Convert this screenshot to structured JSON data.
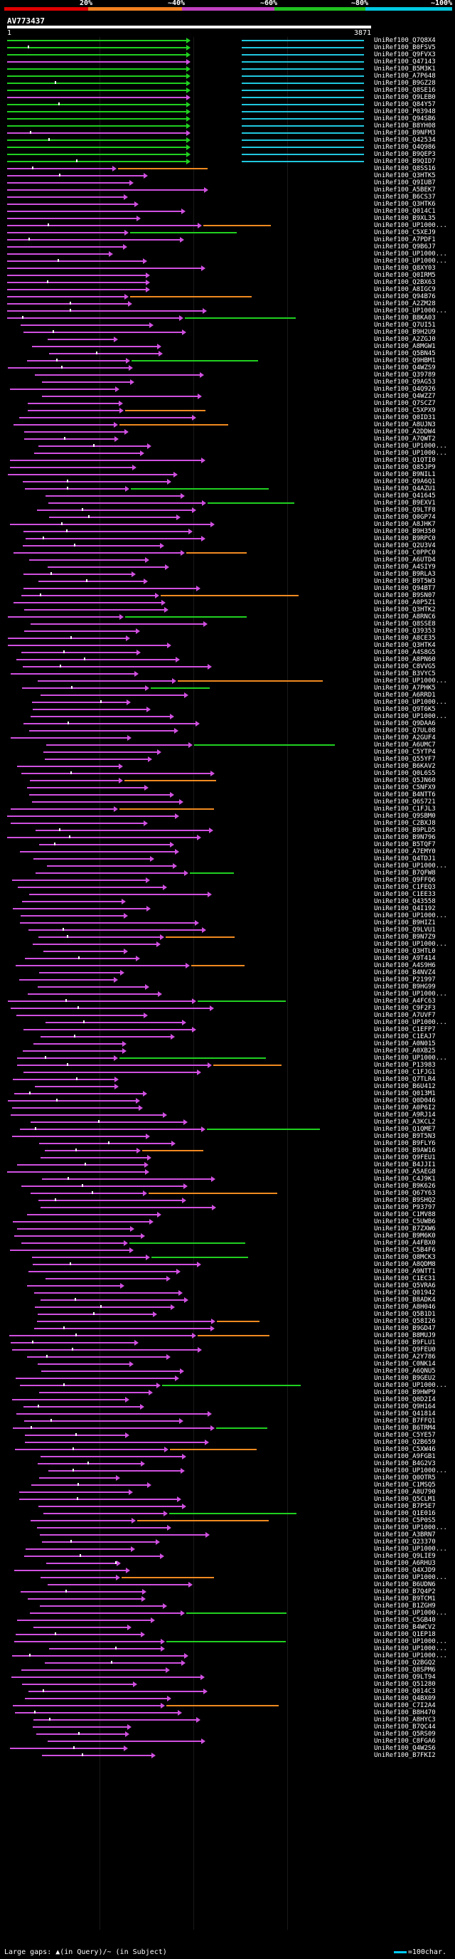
{
  "scale": {
    "labels": [
      "20%",
      "~40%",
      "~60%",
      "~80%",
      "~100%"
    ],
    "colors": [
      "#e00000",
      "#f08020",
      "#c040c0",
      "#20c020",
      "#00c8e0"
    ]
  },
  "query": {
    "id": "AV773437",
    "start": "1",
    "end": "3871"
  },
  "footer": {
    "gaps_text": "Large gaps: ▲(in Query)/~ (in Subject)",
    "scale_text": "=100char."
  },
  "colors": {
    "magenta": "#d050e0",
    "green": "#20d020",
    "orange": "#f08a20",
    "cyan": "#20c8e0",
    "background": "#000000"
  },
  "hits": [
    "UniRef100_Q7Q8X4",
    "UniRef100_B0FSV5",
    "UniRef100_Q9FVX3",
    "UniRef100_Q47143",
    "UniRef100_B5M3K1",
    "UniRef100_A7P648",
    "UniRef100_B9GZ28",
    "UniRef100_Q8SE16",
    "UniRef100_Q9LEB0",
    "UniRef100_Q84Y57",
    "UniRef100_P03948",
    "UniRef100_Q94SB6",
    "UniRef100_B8YH08",
    "UniRef100_B9NFM3",
    "UniRef100_Q42534",
    "UniRef100_Q4Q986",
    "UniRef100_B9QEP3",
    "UniRef100_B9QID7",
    "UniRef100_Q8SS16",
    "UniRef100_Q3HTK5",
    "UniRef100_Q9IUB7",
    "UniRef100_A5BEK7",
    "UniRef100_B6CS37",
    "UniRef100_Q3HTK6",
    "UniRef100_Q014C1",
    "UniRef100_B9XL35",
    "UniRef100_UP1000...",
    "UniRef100_C5XEJ9",
    "UniRef100_A7PDF1",
    "UniRef100_Q9B6J7",
    "UniRef100_UP1000...",
    "UniRef100_UP1000...",
    "UniRef100_Q8XY03",
    "UniRef100_Q0IRM5",
    "UniRef100_Q2BX63",
    "UniRef100_A8IGC9",
    "UniRef100_Q94B76",
    "UniRef100_A2ZM28",
    "UniRef100_UP1000...",
    "UniRef100_B8KA03",
    "UniRef100_Q7UI51",
    "UniRef100_B9H2U9",
    "UniRef100_A2ZGJ0",
    "UniRef100_A8MGW1",
    "UniRef100_Q5BN45",
    "UniRef100_Q9HBM1",
    "UniRef100_Q4WZS9",
    "UniRef100_Q39789",
    "UniRef100_Q9AG53",
    "UniRef100_Q4Q926",
    "UniRef100_Q4WZZ7",
    "UniRef100_Q7SCZ7",
    "UniRef100_C5XPX9",
    "UniRef100_Q0ID31",
    "UniRef100_A8UJN3",
    "UniRef100_A2DDW4",
    "UniRef100_A7QWT2",
    "UniRef100_UP1000...",
    "UniRef100_UP1000...",
    "UniRef100_Q1QTI0",
    "UniRef100_Q85JP9",
    "UniRef100_B9NIL1",
    "UniRef100_Q9A6Q1",
    "UniRef100_Q4AZU1",
    "UniRef100_Q41645",
    "UniRef100_B9EXV1",
    "UniRef100_Q9LTF8",
    "UniRef100_Q0GP74",
    "UniRef100_A8JHK7",
    "UniRef100_B9H350",
    "UniRef100_B9RPC0",
    "UniRef100_Q2U3V4",
    "UniRef100_C0PPC0",
    "UniRef100_A6UTD4",
    "UniRef100_A4SIY9",
    "UniRef100_B9RLA3",
    "UniRef100_B9T5W3",
    "UniRef100_Q94BT7",
    "UniRef100_B9SN07",
    "UniRef100_A0P5Z1",
    "UniRef100_Q3HTK2",
    "UniRef100_A8RNC6",
    "UniRef100_Q8SSE8",
    "UniRef100_Q39353",
    "UniRef100_A8CE35",
    "UniRef100_Q3HTK4",
    "UniRef100_A4S8G5",
    "UniRef100_A8PN60",
    "UniRef100_C8VVG5",
    "UniRef100_B3VYC5",
    "UniRef100_UP1000...",
    "UniRef100_A7PHK5",
    "UniRef100_A6RRD1",
    "UniRef100_UP1000...",
    "UniRef100_Q9T6K5",
    "UniRef100_UP1000...",
    "UniRef100_Q9DAA6",
    "UniRef100_Q7UL08",
    "UniRef100_A2GUF4",
    "UniRef100_A6UMC7",
    "UniRef100_C5YTP4",
    "UniRef100_Q55YF7",
    "UniRef100_B6KAV2",
    "UniRef100_Q0L6S5",
    "UniRef100_Q5JN60",
    "UniRef100_C5NFX9",
    "UniRef100_B4NTT6",
    "UniRef100_Q6S721",
    "UniRef100_C1FJL3",
    "UniRef100_Q9SBM0",
    "UniRef100_C2BXJ8",
    "UniRef100_B9PLD5",
    "UniRef100_B9N796",
    "UniRef100_B5TQF7",
    "UniRef100_A7EMY0",
    "UniRef100_Q4TDJ1",
    "UniRef100_UP1000...",
    "UniRef100_B7QFW8",
    "UniRef100_Q9FFQ6",
    "UniRef100_C1FEQ3",
    "UniRef100_C1EE33",
    "UniRef100_Q43558",
    "UniRef100_Q4I192",
    "UniRef100_UP1000...",
    "UniRef100_B9HIZ1",
    "UniRef100_Q9LVU1",
    "UniRef100_B9N7Z9",
    "UniRef100_UP1000...",
    "UniRef100_Q3HTL0",
    "UniRef100_A9T414",
    "UniRef100_A4S9H6",
    "UniRef100_B4NVZ4",
    "UniRef100_P21997",
    "UniRef100_B9HG99",
    "UniRef100_UP1000...",
    "UniRef100_A4FC63",
    "UniRef100_C9F2F3",
    "UniRef100_A7UVF7",
    "UniRef100_UP1000...",
    "UniRef100_C1EFP7",
    "UniRef100_C1EAJ7",
    "UniRef100_A0N015",
    "UniRef100_A0XB25",
    "UniRef100_UP1000...",
    "UniRef100_P13983",
    "UniRef100_C1FJG1",
    "UniRef100_Q7TLR4",
    "UniRef100_B6U412",
    "UniRef100_Q013M1",
    "UniRef100_Q0D046",
    "UniRef100_A0P6I2",
    "UniRef100_A9RJ14",
    "UniRef100_A3KCL2",
    "UniRef100_Q1QME7",
    "UniRef100_B9T5N3",
    "UniRef100_B9FLY6",
    "UniRef100_B9AW16",
    "UniRef100_Q9FEU1",
    "UniRef100_B4JJI1",
    "UniRef100_A5AEG8",
    "UniRef100_C4J9K1",
    "UniRef100_B9K626",
    "UniRef100_Q67Y63",
    "UniRef100_B9SHQ2",
    "UniRef100_P93797",
    "UniRef100_C1MV88",
    "UniRef100_C5UWB6",
    "UniRef100_B7ZXW6",
    "UniRef100_B9M6K0",
    "UniRef100_A4FBX0",
    "UniRef100_C5B4F6",
    "UniRef100_Q8MCK3",
    "UniRef100_A8QDM8",
    "UniRef100_A9NTT1",
    "UniRef100_C1EC31",
    "UniRef100_Q5VRA6",
    "UniRef100_Q01942",
    "UniRef100_B8ADK4",
    "UniRef100_A8H046",
    "UniRef100_Q5B1D1",
    "UniRef100_Q58I26",
    "UniRef100_B9GD47",
    "UniRef100_B8MUJ9",
    "UniRef100_B9FLU1",
    "UniRef100_Q9FEU0",
    "UniRef100_A2Y786",
    "UniRef100_C0NK14",
    "UniRef100_A6QNU5",
    "UniRef100_B9GEU2",
    "UniRef100_UP1000...",
    "UniRef100_B9HWP9",
    "UniRef100_Q0D2I4",
    "UniRef100_Q9H164",
    "UniRef100_Q41814",
    "UniRef100_B7FFQ1",
    "UniRef100_B6TRM4",
    "UniRef100_C5YE57",
    "UniRef100_Q2B659",
    "UniRef100_C5XW46",
    "UniRef100_A9FGB1",
    "UniRef100_B4G2V3",
    "UniRef100_UP1000...",
    "UniRef100_Q0OTR5",
    "UniRef100_C1MSQ5",
    "UniRef100_A8U790",
    "UniRef100_Q5CLM1",
    "UniRef100_B7P5E7",
    "UniRef100_Q1E016",
    "UniRef100_C5P0S5",
    "UniRef100_UP1000...",
    "UniRef100_A3BRN7",
    "UniRef100_Q23370",
    "UniRef100_UP1000...",
    "UniRef100_Q9LIE9",
    "UniRef100_A6RHU3",
    "UniRef100_Q4XJD9",
    "UniRef100_UP1000...",
    "UniRef100_B6UDN6",
    "UniRef100_B7Q4P2",
    "UniRef100_B9TCM1",
    "UniRef100_B1ZGH9",
    "UniRef100_UP1000...",
    "UniRef100_C5GB40",
    "UniRef100_B4WCV2",
    "UniRef100_Q1EP18",
    "UniRef100_UP1000...",
    "UniRef100_UP1000...",
    "UniRef100_UP1000...",
    "UniRef100_Q2BGQ2",
    "UniRef100_Q8SPM6",
    "UniRef100_Q9LT94",
    "UniRef100_Q51280",
    "UniRef100_Q014C3",
    "UniRef100_Q4BX09",
    "UniRef100_C7I2A4",
    "UniRef100_B8H470",
    "UniRef100_A8HYC3",
    "UniRef100_B7QC44",
    "UniRef100_Q5RS09",
    "UniRef100_C8FGA6",
    "UniRef100_Q4W2S6",
    "UniRef100_B7FKI2"
  ]
}
